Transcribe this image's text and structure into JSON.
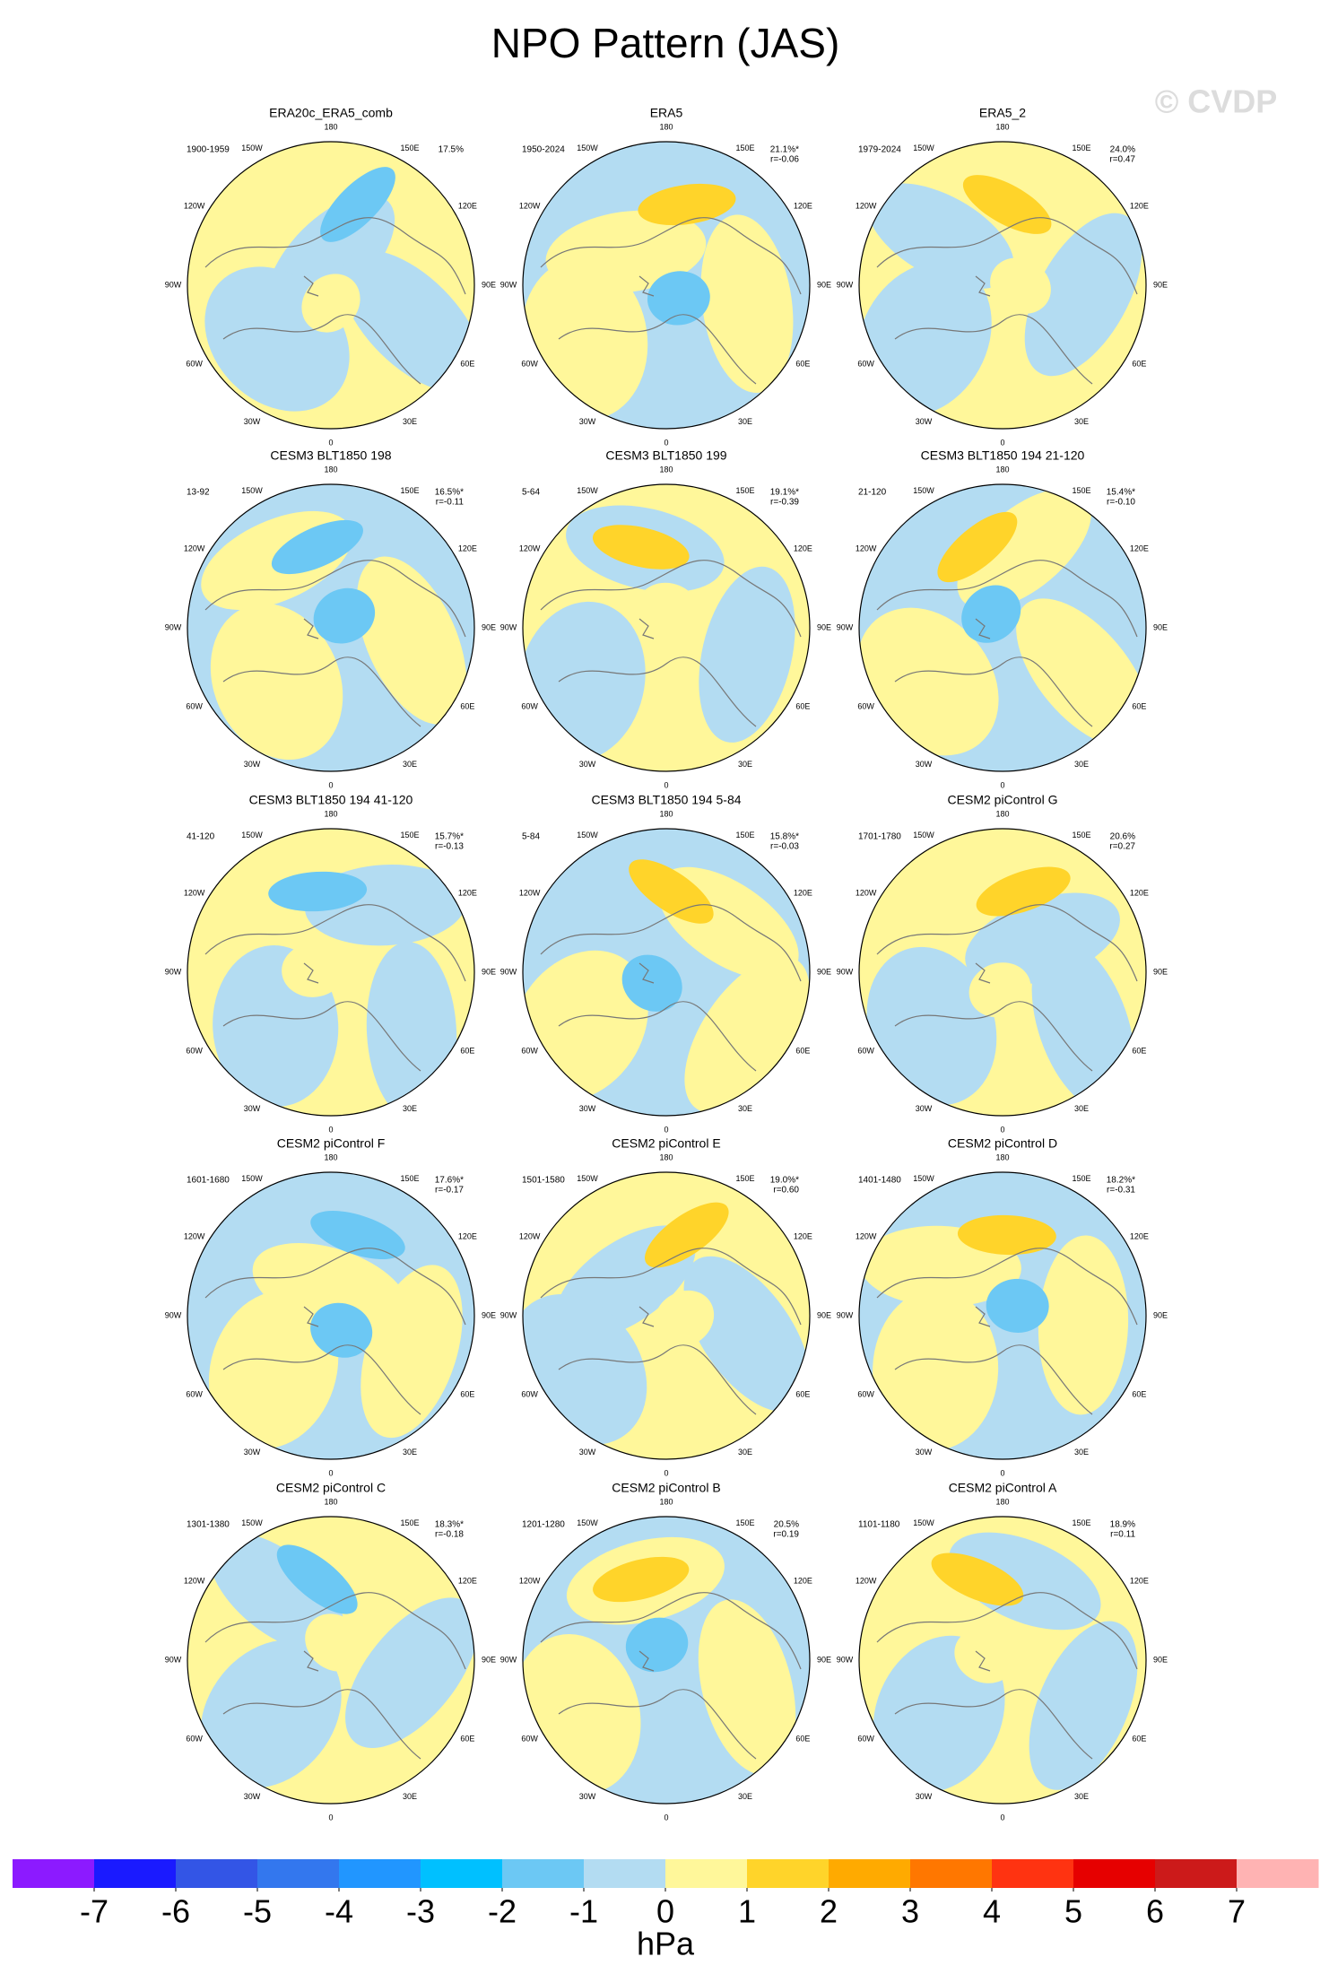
{
  "title": "NPO Pattern (JAS)",
  "watermark": "© CVDP",
  "lon_labels": [
    "180",
    "150W",
    "150E",
    "120W",
    "120E",
    "90W",
    "90E",
    "60W",
    "60E",
    "30W",
    "30E",
    "0"
  ],
  "panels": [
    {
      "title": "ERA20c_ERA5_comb",
      "period": "1900-1959",
      "pct": "17.5%"
    },
    {
      "title": "ERA5",
      "period": "1950-2024",
      "pct": "21.1%*",
      "r": "r=-0.06"
    },
    {
      "title": "ERA5_2",
      "period": "1979-2024",
      "pct": "24.0%",
      "r": "r=0.47"
    },
    {
      "title": "CESM3 BLT1850 198",
      "period": "13-92",
      "pct": "16.5%*",
      "r": "r=-0.11"
    },
    {
      "title": "CESM3 BLT1850 199",
      "period": "5-64",
      "pct": "19.1%*",
      "r": "r=-0.39"
    },
    {
      "title": "CESM3 BLT1850 194 21-120",
      "period": "21-120",
      "pct": "15.4%*",
      "r": "r=-0.10"
    },
    {
      "title": "CESM3 BLT1850 194 41-120",
      "period": "41-120",
      "pct": "15.7%*",
      "r": "r=-0.13"
    },
    {
      "title": "CESM3 BLT1850 194 5-84",
      "period": "5-84",
      "pct": "15.8%*",
      "r": "r=-0.03"
    },
    {
      "title": "CESM2 piControl G",
      "period": "1701-1780",
      "pct": "20.6%",
      "r": "r=0.27"
    },
    {
      "title": "CESM2 piControl F",
      "period": "1601-1680",
      "pct": "17.6%*",
      "r": "r=-0.17"
    },
    {
      "title": "CESM2 piControl E",
      "period": "1501-1580",
      "pct": "19.0%*",
      "r": "r=0.60"
    },
    {
      "title": "CESM2 piControl D",
      "period": "1401-1480",
      "pct": "18.2%*",
      "r": "r=-0.31"
    },
    {
      "title": "CESM2 piControl C",
      "period": "1301-1380",
      "pct": "18.3%*",
      "r": "r=-0.18"
    },
    {
      "title": "CESM2 piControl B",
      "period": "1201-1280",
      "pct": "20.5%",
      "r": "r=0.19"
    },
    {
      "title": "CESM2 piControl A",
      "period": "1101-1180",
      "pct": "18.9%",
      "r": "r=0.11"
    }
  ],
  "colorbar": {
    "colors": [
      "#8c1aff",
      "#1a1aff",
      "#3355e6",
      "#3377ee",
      "#2196ff",
      "#00c0ff",
      "#6cc8f4",
      "#b3dcf2",
      "#fff79a",
      "#ffd42a",
      "#ffaa00",
      "#ff7700",
      "#ff3311",
      "#e60000",
      "#cc1a1a",
      "#ffb3b3"
    ],
    "ticks": [
      -7,
      -6,
      -5,
      -4,
      -3,
      -2,
      -1,
      0,
      1,
      2,
      3,
      4,
      5,
      6,
      7
    ],
    "label": "hPa"
  }
}
